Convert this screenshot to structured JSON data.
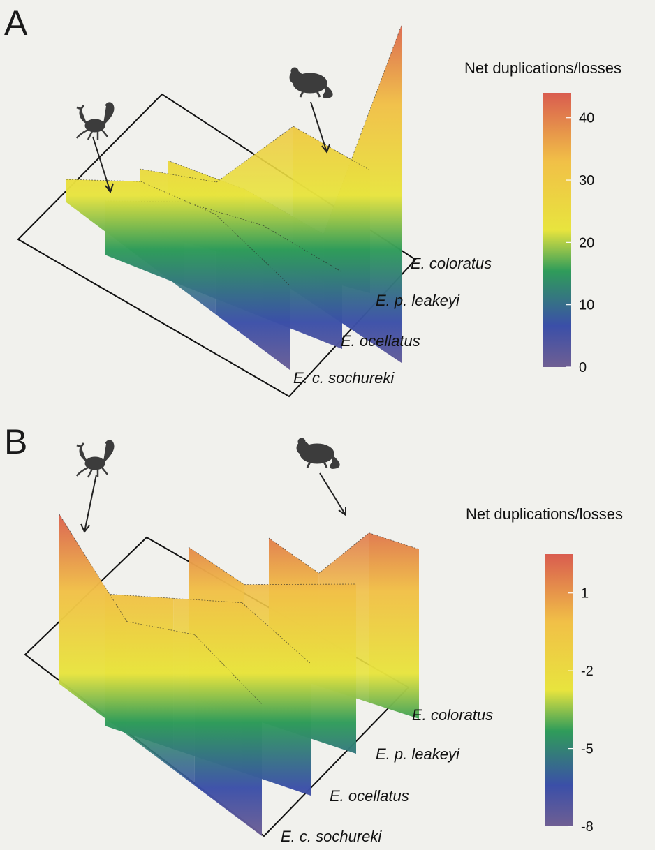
{
  "chart_data": [
    {
      "type": "3d-surface",
      "panel_label": "A",
      "colorbar": {
        "title": "Net duplications/losses",
        "ticks": [
          "40",
          "30",
          "20",
          "10",
          "0"
        ],
        "range": [
          0,
          44
        ],
        "colors": [
          "#d95c4f",
          "#f1c047",
          "#e8e43e",
          "#2f9c5a",
          "#3b4fa8",
          "#6f5f93"
        ]
      },
      "species": [
        "E. coloratus",
        "E. p. leakeyi",
        "E. ocellatus",
        "E. c. sochureki"
      ],
      "icons": [
        "scorpion-icon",
        "rodent-icon"
      ],
      "series": [
        {
          "name": "E. coloratus",
          "values": [
            6,
            9,
            10,
            44
          ]
        },
        {
          "name": "E. p. leakeyi",
          "values": [
            8,
            9,
            19,
            16
          ]
        },
        {
          "name": "E. ocellatus",
          "values": [
            7,
            11,
            12,
            10
          ]
        },
        {
          "name": "E. c. sochureki",
          "values": [
            3,
            10,
            13,
            11
          ]
        }
      ]
    },
    {
      "type": "3d-surface",
      "panel_label": "B",
      "colorbar": {
        "title": "Net duplications/losses",
        "ticks": [
          "1",
          "-2",
          "-5",
          "-8"
        ],
        "range": [
          -8,
          2.5
        ],
        "colors": [
          "#d95c4f",
          "#f1c047",
          "#e8e43e",
          "#2f9c5a",
          "#3b4fa8",
          "#6f5f93"
        ]
      },
      "species": [
        "E. coloratus",
        "E. p. leakeyi",
        "E. ocellatus",
        "E. c. sochureki"
      ],
      "icons": [
        "scorpion-icon",
        "rodent-icon"
      ],
      "series": [
        {
          "name": "E. coloratus",
          "values": [
            -1,
            -2,
            1,
            1
          ]
        },
        {
          "name": "E. p. leakeyi",
          "values": [
            0,
            -1,
            0,
            1
          ]
        },
        {
          "name": "E. ocellatus",
          "values": [
            -1,
            0,
            1,
            -1
          ]
        },
        {
          "name": "E. c. sochureki",
          "values": [
            1,
            -2,
            0,
            -1
          ]
        }
      ]
    }
  ]
}
